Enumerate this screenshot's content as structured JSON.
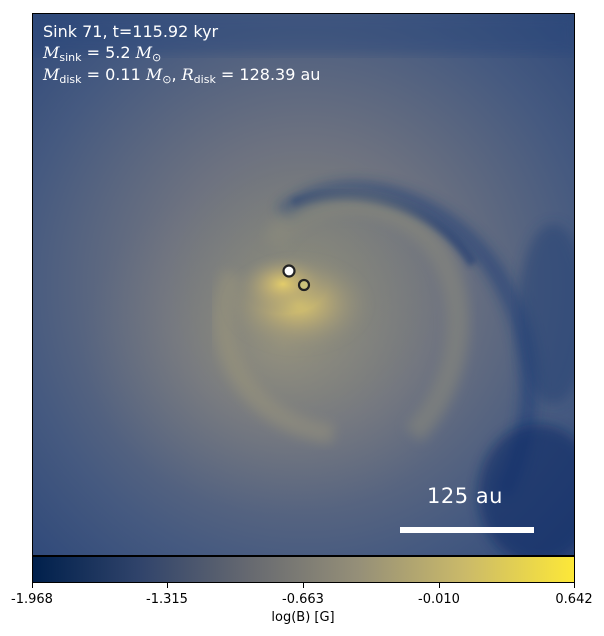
{
  "annotation": {
    "line1": "Sink 71, t=115.92 kyr",
    "m_sink_symbol": "M",
    "m_sink_sub": "sink",
    "m_sink_value": "= 5.2",
    "m_disk_symbol": "M",
    "m_disk_sub": "disk",
    "m_disk_value": "= 0.11",
    "r_disk_symbol": "R",
    "r_disk_sub": "disk",
    "r_disk_value": "= 128.39 au",
    "solar_symbol": "M",
    "solar_sub": "⊙"
  },
  "scale_bar": {
    "label": "125 au"
  },
  "colorbar": {
    "label": "log(B) [G]",
    "ticks": [
      "-1.968",
      "-1.315",
      "-0.663",
      "-0.010",
      "0.642"
    ],
    "min": -1.968,
    "max": 0.642,
    "colormap": [
      "#00204c",
      "#31446b",
      "#666970",
      "#958f78",
      "#cbba69",
      "#fde838"
    ]
  },
  "sinks": [
    {
      "name": "primary",
      "fill": "#ffffff"
    },
    {
      "name": "companion",
      "fill": "#c9c07a"
    }
  ]
}
